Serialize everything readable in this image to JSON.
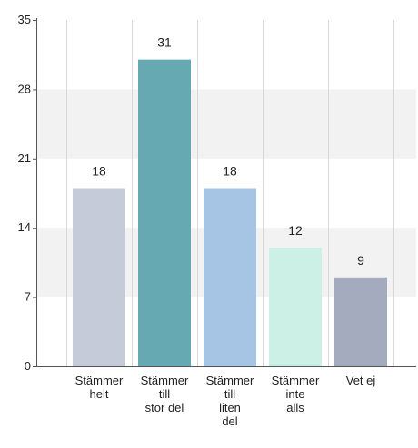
{
  "chart_data": {
    "type": "bar",
    "categories": [
      [
        "Stämmer",
        "helt"
      ],
      [
        "Stämmer",
        "till",
        "stor del"
      ],
      [
        "Stämmer",
        "till",
        "liten",
        "del"
      ],
      [
        "Stämmer",
        "inte",
        "alls"
      ],
      [
        "Vet ej"
      ]
    ],
    "values": [
      18,
      31,
      18,
      12,
      9
    ],
    "data_labels": [
      "18",
      "31",
      "18",
      "12",
      "9"
    ],
    "bar_colors": [
      "#c5cbd9",
      "#67a9b3",
      "#a6c4e3",
      "#cdf0e6",
      "#a4abbf"
    ],
    "ylim": [
      0,
      35
    ],
    "yticks": [
      0,
      7,
      14,
      21,
      28,
      35
    ],
    "grid": true,
    "band_color": "#f2f2f2",
    "grid_color": "#d9d9d9"
  }
}
